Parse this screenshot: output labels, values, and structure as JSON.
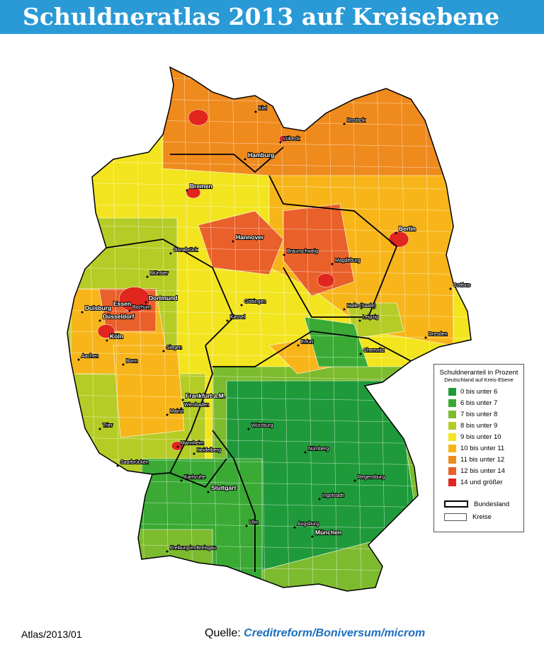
{
  "header": {
    "title": "Schuldneratlas 2013 auf Kreisebene"
  },
  "map": {
    "cities": [
      "Kiel",
      "Rostock",
      "Lübeck",
      "Hamburg",
      "Bremen",
      "Berlin",
      "Hannover",
      "Osnabrück",
      "Braunschweig",
      "Magdeburg",
      "Münster",
      "Dortmund",
      "Essen",
      "Bochum",
      "Duisburg",
      "Düsseldorf",
      "Göttingen",
      "Halle (Saale)",
      "Leipzig",
      "Cottbus",
      "Dresden",
      "Kassel",
      "Köln",
      "Erfurt",
      "Chemnitz",
      "Aachen",
      "Siegen",
      "Bonn",
      "Frankfurt a.M.",
      "Wiesbaden",
      "Mainz",
      "Würzburg",
      "Trier",
      "Mannheim",
      "Nürnberg",
      "Heidelberg",
      "Saarbrücken",
      "Regensburg",
      "Karlsruhe",
      "Stuttgart",
      "Ingolstadt",
      "Ulm",
      "Augsburg",
      "München",
      "Freiburg im Breisgau"
    ]
  },
  "legend": {
    "title": "Schuldneranteil in Prozent",
    "subtitle": "Deutschland auf Kreis-Ebene",
    "items": [
      {
        "label": "0 bis unter 6",
        "color": "#1f9a3a"
      },
      {
        "label": "6 bis unter 7",
        "color": "#3aaa35"
      },
      {
        "label": "7 bis unter 8",
        "color": "#7dbb2e"
      },
      {
        "label": "8 bis unter 9",
        "color": "#b5cc26"
      },
      {
        "label": "9 bis unter 10",
        "color": "#f2e51f"
      },
      {
        "label": "10 bis unter 11",
        "color": "#f7b51a"
      },
      {
        "label": "11 bis unter 12",
        "color": "#ef8a1c"
      },
      {
        "label": "12 bis unter 14",
        "color": "#e9602a"
      },
      {
        "label": "14 und größer",
        "color": "#e0261f"
      }
    ],
    "borders": [
      "Bundesland",
      "Kreise"
    ]
  },
  "footer": {
    "code": "Atlas/2013/01",
    "source_label": "Quelle:",
    "sources": [
      "Creditreform",
      "Boniversum",
      "microm"
    ],
    "separator": "/"
  }
}
